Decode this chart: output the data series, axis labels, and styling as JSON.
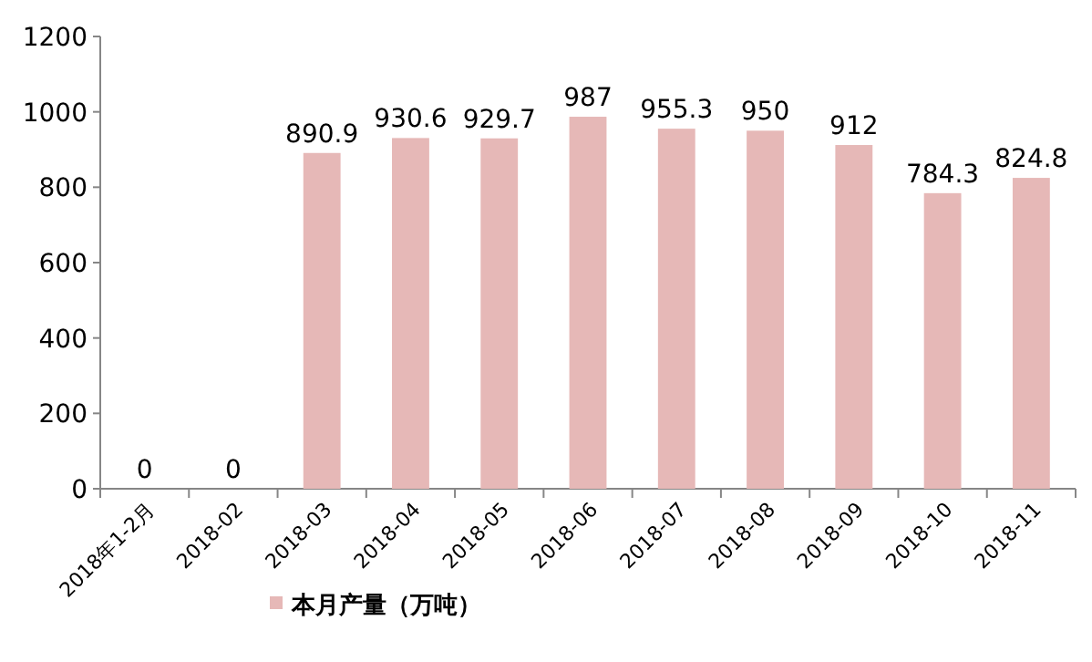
{
  "chart_data": {
    "type": "bar",
    "categories": [
      "2018年1-2月",
      "2018-02",
      "2018-03",
      "2018-04",
      "2018-05",
      "2018-06",
      "2018-07",
      "2018-08",
      "2018-09",
      "2018-10",
      "2018-11"
    ],
    "series": [
      {
        "name": "本月产量（万吨）",
        "color": "#e6b8b7",
        "values": [
          0,
          0,
          890.9,
          930.6,
          929.7,
          987,
          955.3,
          950,
          912,
          784.3,
          824.8
        ]
      }
    ],
    "ylim": [
      0,
      1200
    ],
    "yticks": [
      0,
      200,
      400,
      600,
      800,
      1000,
      1200
    ],
    "data_labels": true,
    "grid": false,
    "legend": "bottom left"
  }
}
